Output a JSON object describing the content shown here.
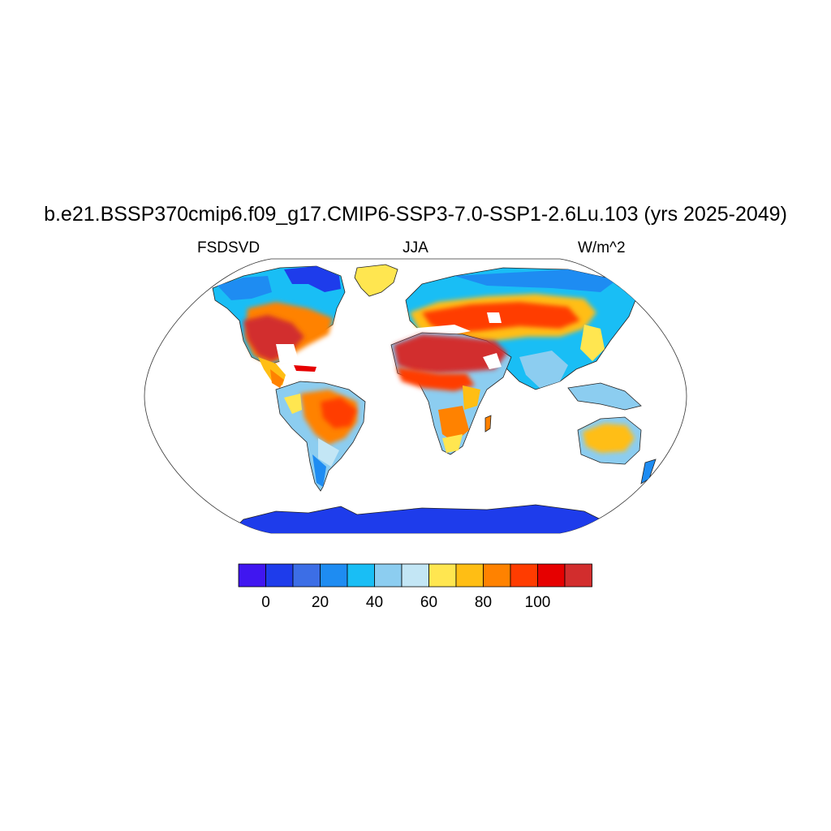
{
  "title": "b.e21.BSSP370cmip6.f09_g17.CMIP6-SSP3-7.0-SSP1-2.6Lu.103 (yrs 2025-2049)",
  "left_label": "FSDSVD",
  "center_label": "JJA",
  "right_label": "W/m^2",
  "colorbar": {
    "colors": [
      "#4016f0",
      "#1e3ceb",
      "#3c6ee6",
      "#1e8cf2",
      "#19bef5",
      "#8ccdf0",
      "#c3e6f5",
      "#ffe650",
      "#ffbe14",
      "#ff8200",
      "#ff3c00",
      "#e60000",
      "#d22d2d"
    ],
    "tick_labels": [
      "0",
      "20",
      "40",
      "60",
      "80",
      "100"
    ]
  },
  "map": {
    "projection": "Robinson",
    "background": "#ffffff",
    "colors": {
      "antarctica": "#1e3ceb",
      "coast": "#222222"
    }
  }
}
